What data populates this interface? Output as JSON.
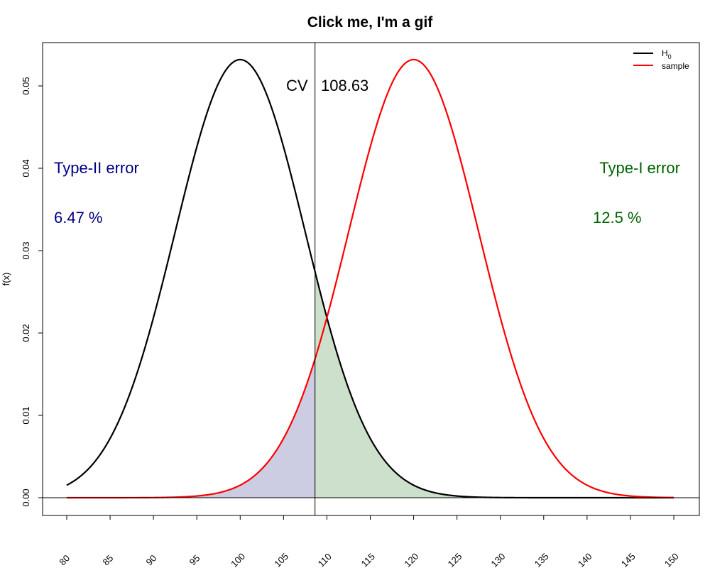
{
  "chart_data": {
    "type": "line",
    "title": "Click me, I'm a gif",
    "xlabel": "",
    "ylabel": "f(x)",
    "xlim": [
      80,
      150
    ],
    "ylim": [
      0,
      0.055
    ],
    "x_ticks": [
      "80",
      "85",
      "90",
      "95",
      "100",
      "105",
      "110",
      "115",
      "120",
      "125",
      "130",
      "135",
      "140",
      "145",
      "150"
    ],
    "y_ticks": [
      "0.00",
      "0.01",
      "0.02",
      "0.03",
      "0.04",
      "0.05"
    ],
    "series": [
      {
        "name": "H0",
        "legend_label": "H",
        "legend_sub": "0",
        "distribution": "normal",
        "mean": 100,
        "sd": 7.5,
        "color": "#000000",
        "x_range": [
          80,
          150
        ]
      },
      {
        "name": "sample",
        "legend_label": "sample",
        "legend_sub": "",
        "distribution": "normal",
        "mean": 120,
        "sd": 7.5,
        "color": "#ff0000",
        "x_range": [
          80,
          150
        ]
      }
    ],
    "critical_value": {
      "label": "CV",
      "value": 108.63,
      "value_text": "108.63"
    },
    "annotations": {
      "type2": {
        "label": "Type-II error",
        "value": "6.47 %",
        "color": "#000080",
        "fill": "#cccde2"
      },
      "type1": {
        "label": "Type-I error",
        "value": "12.5 %",
        "color": "#006400",
        "fill": "#cce0cc"
      }
    },
    "legend_position": "top-right",
    "grid": false
  }
}
